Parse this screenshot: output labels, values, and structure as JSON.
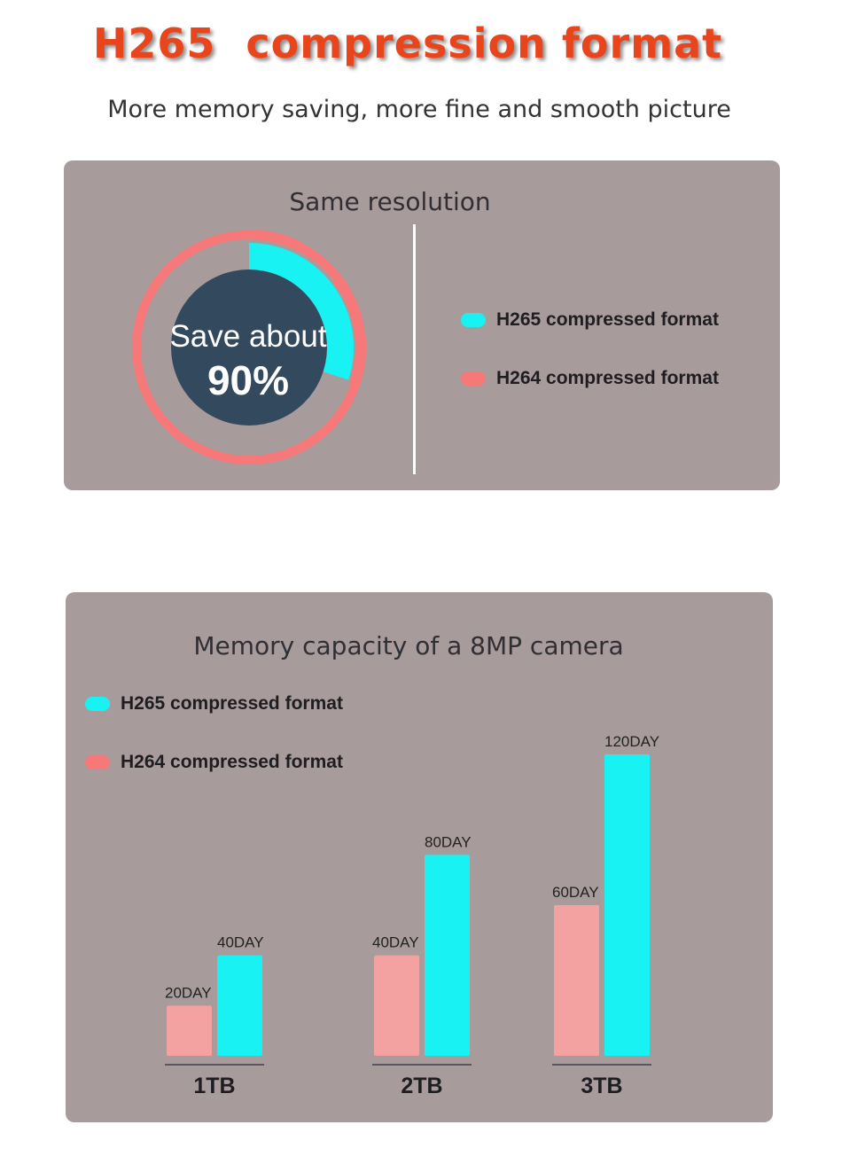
{
  "header": {
    "title": "H265  compression format",
    "subtitle": "More memory saving, more fine and smooth picture"
  },
  "resolution_panel": {
    "heading": "Same resolution",
    "donut": {
      "line1": "Save about",
      "line2": "90%",
      "h265_fraction": 0.3,
      "colors": {
        "h265": "#19f2f2",
        "h264": "#f77878",
        "center": "#33495e"
      }
    },
    "legend": [
      {
        "label": "H265 compressed format",
        "color": "#19f2f2"
      },
      {
        "label": "H264 compressed format",
        "color": "#f77878"
      }
    ]
  },
  "capacity_panel": {
    "heading": "Memory capacity of a 8MP camera",
    "legend": [
      {
        "label": "H265 compressed format",
        "color": "#19f2f2"
      },
      {
        "label": "H264 compressed format",
        "color": "#f77878"
      }
    ]
  },
  "chart_data": {
    "type": "bar",
    "title": "Memory capacity of a 8MP camera",
    "categories": [
      "1TB",
      "2TB",
      "3TB"
    ],
    "series": [
      {
        "name": "H264 compressed format",
        "values": [
          20,
          40,
          60
        ],
        "labels": [
          "20DAY",
          "40DAY",
          "60DAY"
        ],
        "color": "#f4a1a1"
      },
      {
        "name": "H265 compressed format",
        "values": [
          40,
          80,
          120
        ],
        "labels": [
          "40DAY",
          "80DAY",
          "120DAY"
        ],
        "color": "#19f2f2"
      }
    ],
    "ylim": [
      0,
      120
    ],
    "grid": false,
    "legend_position": "top-left"
  }
}
